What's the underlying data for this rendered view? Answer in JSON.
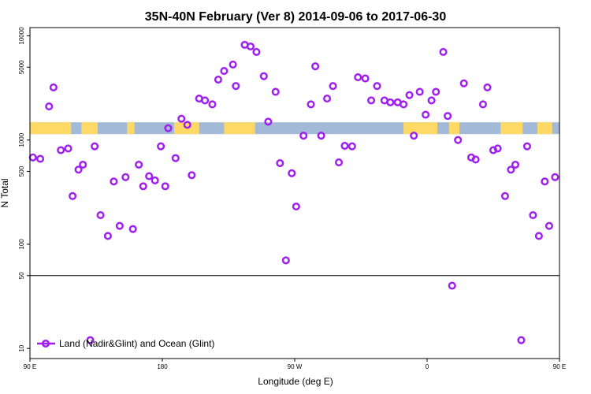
{
  "chart_data": {
    "type": "scatter",
    "title": "35N-40N February (Ver 8)   2014-09-06 to 2017-06-30",
    "xlabel": "Longitude (deg E)",
    "ylabel": "N Total",
    "y_scale": "log",
    "x_range_deg": [
      90,
      450
    ],
    "y_range": [
      8,
      12000
    ],
    "x_ticks": [
      {
        "value": 90,
        "label": "90 E"
      },
      {
        "value": 180,
        "label": "180"
      },
      {
        "value": 270,
        "label": "90 W"
      },
      {
        "value": 360,
        "label": "0"
      },
      {
        "value": 450,
        "label": "90 E"
      },
      {
        "value": 540,
        "label": "180"
      }
    ],
    "x_ticks_visible_max": 450,
    "y_ticks": [
      {
        "value": 10,
        "label": "10"
      },
      {
        "value": 50,
        "label": "50"
      },
      {
        "value": 100,
        "label": "100"
      },
      {
        "value": 500,
        "label": "500"
      },
      {
        "value": 1000,
        "label": "1000"
      },
      {
        "value": 5000,
        "label": "5000"
      },
      {
        "value": 10000,
        "label": "10000"
      }
    ],
    "reference_line_y": 50,
    "series": [
      {
        "name": "Land (Nadir&Glint) and Ocean (Glint)",
        "color": "#a020f0",
        "points": [
          [
            92,
            680
          ],
          [
            97,
            660
          ],
          [
            103,
            2100
          ],
          [
            106,
            3200
          ],
          [
            111,
            800
          ],
          [
            116,
            830
          ],
          [
            119,
            290
          ],
          [
            123,
            520
          ],
          [
            126,
            580
          ],
          [
            131,
            12
          ],
          [
            134,
            870
          ],
          [
            138,
            190
          ],
          [
            143,
            120
          ],
          [
            147,
            400
          ],
          [
            151,
            150
          ],
          [
            155,
            440
          ],
          [
            160,
            140
          ],
          [
            164,
            580
          ],
          [
            167,
            360
          ],
          [
            171,
            450
          ],
          [
            175,
            410
          ],
          [
            179,
            870
          ],
          [
            182,
            360
          ],
          [
            184,
            1300
          ],
          [
            189,
            670
          ],
          [
            193,
            1600
          ],
          [
            197,
            1400
          ],
          [
            200,
            460
          ],
          [
            205,
            2500
          ],
          [
            209,
            2400
          ],
          [
            214,
            2200
          ],
          [
            218,
            3800
          ],
          [
            222,
            4600
          ],
          [
            228,
            5300
          ],
          [
            230,
            3300
          ],
          [
            236,
            8200
          ],
          [
            240,
            7900
          ],
          [
            244,
            7000
          ],
          [
            249,
            4100
          ],
          [
            252,
            1500
          ],
          [
            257,
            2900
          ],
          [
            260,
            600
          ],
          [
            264,
            70
          ],
          [
            268,
            480
          ],
          [
            271,
            230
          ],
          [
            276,
            1100
          ],
          [
            281,
            2200
          ],
          [
            284,
            5100
          ],
          [
            288,
            1100
          ],
          [
            292,
            2500
          ],
          [
            296,
            3300
          ],
          [
            300,
            610
          ],
          [
            304,
            880
          ],
          [
            309,
            870
          ],
          [
            313,
            4000
          ],
          [
            318,
            3900
          ],
          [
            322,
            2400
          ],
          [
            326,
            3300
          ],
          [
            331,
            2400
          ],
          [
            335,
            2300
          ],
          [
            340,
            2300
          ],
          [
            344,
            2200
          ],
          [
            348,
            2700
          ],
          [
            351,
            1100
          ],
          [
            355,
            2900
          ],
          [
            359,
            1750
          ],
          [
            363,
            2400
          ],
          [
            366,
            2900
          ],
          [
            371,
            7000
          ],
          [
            374,
            1700
          ],
          [
            377,
            40
          ],
          [
            381,
            1000
          ],
          [
            385,
            3500
          ],
          [
            390,
            680
          ],
          [
            393,
            650
          ],
          [
            398,
            2200
          ],
          [
            401,
            3200
          ],
          [
            405,
            800
          ],
          [
            408,
            830
          ],
          [
            413,
            290
          ],
          [
            417,
            520
          ],
          [
            420,
            580
          ],
          [
            424,
            12
          ],
          [
            428,
            870
          ],
          [
            432,
            190
          ],
          [
            436,
            120
          ],
          [
            440,
            400
          ],
          [
            443,
            150
          ],
          [
            447,
            440
          ],
          [
            451,
            140
          ],
          [
            455,
            580
          ]
        ]
      }
    ],
    "surface_band": {
      "y_low": 1140,
      "y_high": 1480,
      "land_color": "#ffd966",
      "ocean_color": "#a2b9d8",
      "land_segments_deg": [
        [
          90,
          118
        ],
        [
          125,
          136
        ],
        [
          156,
          161
        ],
        [
          188,
          205
        ],
        [
          222,
          243
        ],
        [
          344,
          367
        ],
        [
          375,
          382
        ],
        [
          410,
          425
        ],
        [
          435,
          445
        ]
      ]
    },
    "legend": {
      "placement": "bottom-left",
      "marker": "circle-line"
    }
  }
}
